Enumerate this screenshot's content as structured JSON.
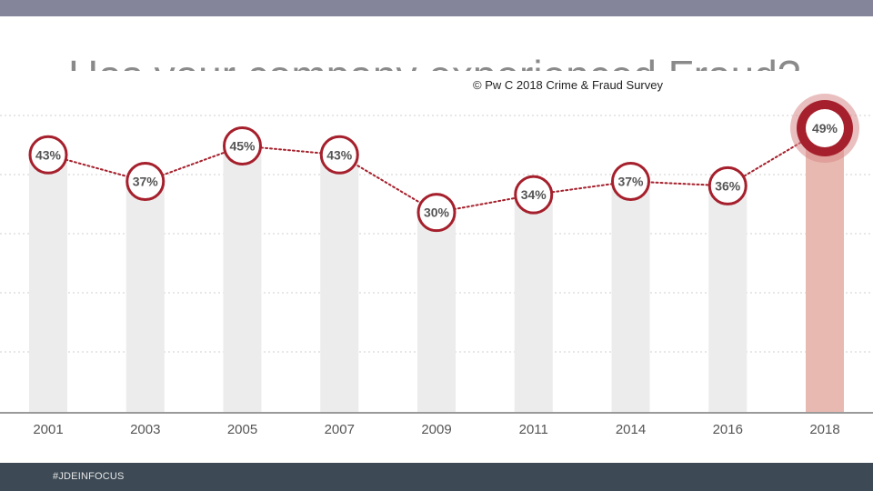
{
  "header": {
    "title": "Has your company experienced Fraud?",
    "source": "© Pw C 2018 Crime & Fraud Survey"
  },
  "footer": {
    "hashtag": "#JDEINFOCUS"
  },
  "colors": {
    "top_bar": "#84859b",
    "footer": "#3d4a55",
    "bar": "#ececec",
    "bar_highlight": "#e8b9b0",
    "accent": "#a5202c",
    "grid": "#cfcfcf",
    "text": "#555555"
  },
  "chart_data": {
    "type": "line",
    "categories": [
      "2001",
      "2003",
      "2005",
      "2007",
      "2009",
      "2011",
      "2014",
      "2016",
      "2018"
    ],
    "values": [
      43,
      37,
      45,
      43,
      30,
      34,
      37,
      36,
      49
    ],
    "labels": [
      "43%",
      "37%",
      "45%",
      "43%",
      "30%",
      "34%",
      "37%",
      "36%",
      "49%"
    ],
    "highlight_index": 8,
    "ylim": [
      0,
      50
    ],
    "grid": true,
    "legend": "none"
  }
}
